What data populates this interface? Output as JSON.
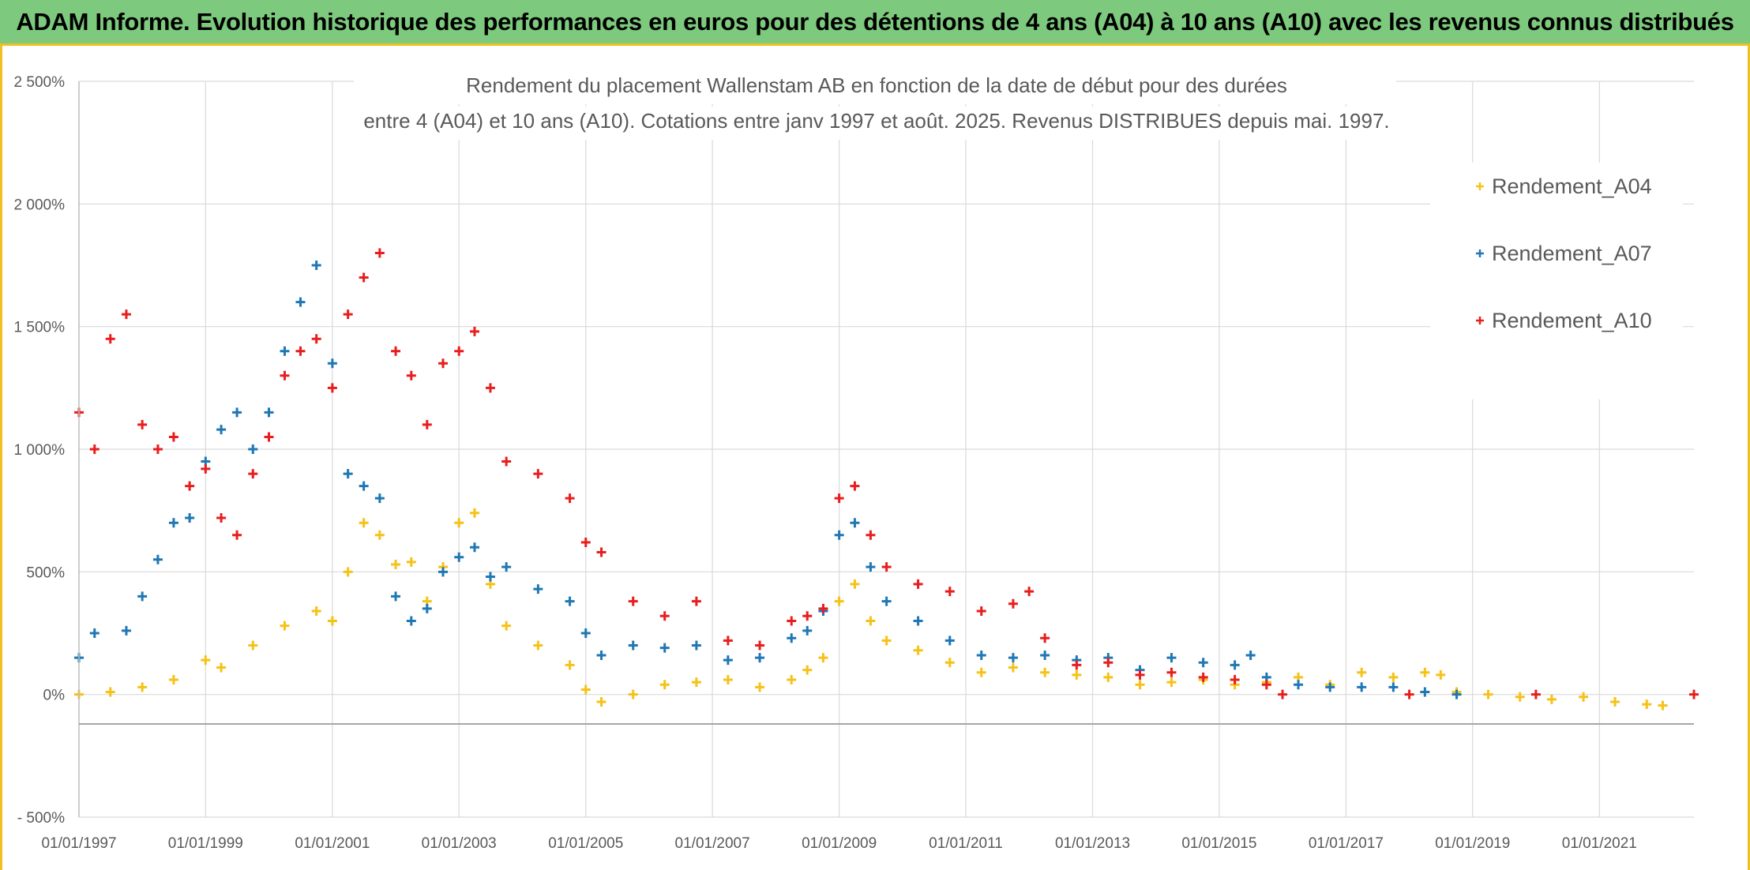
{
  "header": {
    "title": "ADAM Informe. Evolution historique des performances en euros pour des détentions de 4 ans (A04) à 10 ans (A10) avec les revenus connus distribués"
  },
  "chart_data": {
    "type": "scatter",
    "title_lines": [
      "Rendement du placement Wallenstam AB en fonction de la date de début pour des durées",
      "entre 4 (A04) et 10 ans (A10). Cotations entre janv 1997 et août. 2025. Revenus DISTRIBUES depuis mai. 1997."
    ],
    "xlabel": "",
    "ylabel": "",
    "x_ticks": [
      "01/01/1997",
      "01/01/1999",
      "01/01/2001",
      "01/01/2003",
      "01/01/2005",
      "01/01/2007",
      "01/01/2009",
      "01/01/2011",
      "01/01/2013",
      "01/01/2015",
      "01/01/2017",
      "01/01/2019",
      "01/01/2021"
    ],
    "y_ticks": [
      "- 500%",
      "0%",
      "500%",
      "1 000%",
      "1 500%",
      "2 000%",
      "2 500%"
    ],
    "xlim": [
      "1997-01-01",
      "2022-06-30"
    ],
    "ylim": [
      -500,
      2500
    ],
    "grid": true,
    "legend_position": "top-right",
    "series": [
      {
        "name": "Rendement_A04",
        "color": "#f5c218",
        "points": [
          [
            "1997-01-01",
            0
          ],
          [
            "1997-07-01",
            10
          ],
          [
            "1998-01-01",
            30
          ],
          [
            "1998-07-01",
            60
          ],
          [
            "1999-01-01",
            140
          ],
          [
            "1999-04-01",
            110
          ],
          [
            "1999-10-01",
            200
          ],
          [
            "2000-04-01",
            280
          ],
          [
            "2000-10-01",
            340
          ],
          [
            "2001-01-01",
            300
          ],
          [
            "2001-04-01",
            500
          ],
          [
            "2001-07-01",
            700
          ],
          [
            "2001-10-01",
            650
          ],
          [
            "2002-01-01",
            530
          ],
          [
            "2002-04-01",
            540
          ],
          [
            "2002-07-01",
            380
          ],
          [
            "2002-10-01",
            520
          ],
          [
            "2003-01-01",
            700
          ],
          [
            "2003-04-01",
            740
          ],
          [
            "2003-07-01",
            450
          ],
          [
            "2003-10-01",
            280
          ],
          [
            "2004-04-01",
            200
          ],
          [
            "2004-10-01",
            120
          ],
          [
            "2005-01-01",
            20
          ],
          [
            "2005-04-01",
            -30
          ],
          [
            "2005-10-01",
            0
          ],
          [
            "2006-04-01",
            40
          ],
          [
            "2006-10-01",
            50
          ],
          [
            "2007-04-01",
            60
          ],
          [
            "2007-10-01",
            30
          ],
          [
            "2008-04-01",
            60
          ],
          [
            "2008-07-01",
            100
          ],
          [
            "2008-10-01",
            150
          ],
          [
            "2009-01-01",
            380
          ],
          [
            "2009-04-01",
            450
          ],
          [
            "2009-07-01",
            300
          ],
          [
            "2009-10-01",
            220
          ],
          [
            "2010-04-01",
            180
          ],
          [
            "2010-10-01",
            130
          ],
          [
            "2011-04-01",
            90
          ],
          [
            "2011-10-01",
            110
          ],
          [
            "2012-04-01",
            90
          ],
          [
            "2012-10-01",
            80
          ],
          [
            "2013-04-01",
            70
          ],
          [
            "2013-10-01",
            40
          ],
          [
            "2014-04-01",
            50
          ],
          [
            "2014-10-01",
            60
          ],
          [
            "2015-04-01",
            40
          ],
          [
            "2015-10-01",
            50
          ],
          [
            "2016-04-01",
            70
          ],
          [
            "2016-10-01",
            40
          ],
          [
            "2017-04-01",
            90
          ],
          [
            "2017-10-01",
            70
          ],
          [
            "2018-04-01",
            90
          ],
          [
            "2018-07-01",
            80
          ],
          [
            "2018-10-01",
            10
          ],
          [
            "2019-04-01",
            0
          ],
          [
            "2019-10-01",
            -10
          ],
          [
            "2020-04-01",
            -20
          ],
          [
            "2020-10-01",
            -10
          ],
          [
            "2021-04-01",
            -30
          ],
          [
            "2021-10-01",
            -40
          ],
          [
            "2022-01-01",
            -45
          ]
        ]
      },
      {
        "name": "Rendement_A07",
        "color": "#1f77b4",
        "points": [
          [
            "1997-01-01",
            150
          ],
          [
            "1997-04-01",
            250
          ],
          [
            "1997-10-01",
            260
          ],
          [
            "1998-01-01",
            400
          ],
          [
            "1998-04-01",
            550
          ],
          [
            "1998-07-01",
            700
          ],
          [
            "1998-10-01",
            720
          ],
          [
            "1999-01-01",
            950
          ],
          [
            "1999-04-01",
            1080
          ],
          [
            "1999-07-01",
            1150
          ],
          [
            "1999-10-01",
            1000
          ],
          [
            "2000-01-01",
            1150
          ],
          [
            "2000-04-01",
            1400
          ],
          [
            "2000-07-01",
            1600
          ],
          [
            "2000-10-01",
            1750
          ],
          [
            "2001-01-01",
            1350
          ],
          [
            "2001-04-01",
            900
          ],
          [
            "2001-07-01",
            850
          ],
          [
            "2001-10-01",
            800
          ],
          [
            "2002-01-01",
            400
          ],
          [
            "2002-04-01",
            300
          ],
          [
            "2002-07-01",
            350
          ],
          [
            "2002-10-01",
            500
          ],
          [
            "2003-01-01",
            560
          ],
          [
            "2003-04-01",
            600
          ],
          [
            "2003-07-01",
            480
          ],
          [
            "2003-10-01",
            520
          ],
          [
            "2004-04-01",
            430
          ],
          [
            "2004-10-01",
            380
          ],
          [
            "2005-01-01",
            250
          ],
          [
            "2005-04-01",
            160
          ],
          [
            "2005-10-01",
            200
          ],
          [
            "2006-04-01",
            190
          ],
          [
            "2006-10-01",
            200
          ],
          [
            "2007-04-01",
            140
          ],
          [
            "2007-10-01",
            150
          ],
          [
            "2008-04-01",
            230
          ],
          [
            "2008-07-01",
            260
          ],
          [
            "2008-10-01",
            340
          ],
          [
            "2009-01-01",
            650
          ],
          [
            "2009-04-01",
            700
          ],
          [
            "2009-07-01",
            520
          ],
          [
            "2009-10-01",
            380
          ],
          [
            "2010-04-01",
            300
          ],
          [
            "2010-10-01",
            220
          ],
          [
            "2011-04-01",
            160
          ],
          [
            "2011-10-01",
            150
          ],
          [
            "2012-04-01",
            160
          ],
          [
            "2012-10-01",
            140
          ],
          [
            "2013-04-01",
            150
          ],
          [
            "2013-10-01",
            100
          ],
          [
            "2014-04-01",
            150
          ],
          [
            "2014-10-01",
            130
          ],
          [
            "2015-04-01",
            120
          ],
          [
            "2015-07-01",
            160
          ],
          [
            "2015-10-01",
            70
          ],
          [
            "2016-04-01",
            40
          ],
          [
            "2016-10-01",
            30
          ],
          [
            "2017-04-01",
            30
          ],
          [
            "2017-10-01",
            30
          ],
          [
            "2018-04-01",
            10
          ],
          [
            "2018-10-01",
            0
          ]
        ]
      },
      {
        "name": "Rendement_A10",
        "color": "#e81e1e",
        "points": [
          [
            "1997-01-01",
            1150
          ],
          [
            "1997-04-01",
            1000
          ],
          [
            "1997-07-01",
            1450
          ],
          [
            "1997-10-01",
            1550
          ],
          [
            "1998-01-01",
            1100
          ],
          [
            "1998-04-01",
            1000
          ],
          [
            "1998-07-01",
            1050
          ],
          [
            "1998-10-01",
            850
          ],
          [
            "1999-01-01",
            920
          ],
          [
            "1999-04-01",
            720
          ],
          [
            "1999-07-01",
            650
          ],
          [
            "1999-10-01",
            900
          ],
          [
            "2000-01-01",
            1050
          ],
          [
            "2000-04-01",
            1300
          ],
          [
            "2000-07-01",
            1400
          ],
          [
            "2000-10-01",
            1450
          ],
          [
            "2001-01-01",
            1250
          ],
          [
            "2001-04-01",
            1550
          ],
          [
            "2001-07-01",
            1700
          ],
          [
            "2001-10-01",
            1800
          ],
          [
            "2002-01-01",
            1400
          ],
          [
            "2002-04-01",
            1300
          ],
          [
            "2002-07-01",
            1100
          ],
          [
            "2002-10-01",
            1350
          ],
          [
            "2003-01-01",
            1400
          ],
          [
            "2003-04-01",
            1480
          ],
          [
            "2003-07-01",
            1250
          ],
          [
            "2003-10-01",
            950
          ],
          [
            "2004-04-01",
            900
          ],
          [
            "2004-10-01",
            800
          ],
          [
            "2005-01-01",
            620
          ],
          [
            "2005-04-01",
            580
          ],
          [
            "2005-10-01",
            380
          ],
          [
            "2006-04-01",
            320
          ],
          [
            "2006-10-01",
            380
          ],
          [
            "2007-04-01",
            220
          ],
          [
            "2007-10-01",
            200
          ],
          [
            "2008-04-01",
            300
          ],
          [
            "2008-07-01",
            320
          ],
          [
            "2008-10-01",
            350
          ],
          [
            "2009-01-01",
            800
          ],
          [
            "2009-04-01",
            850
          ],
          [
            "2009-07-01",
            650
          ],
          [
            "2009-10-01",
            520
          ],
          [
            "2010-04-01",
            450
          ],
          [
            "2010-10-01",
            420
          ],
          [
            "2011-04-01",
            340
          ],
          [
            "2011-10-01",
            370
          ],
          [
            "2012-01-01",
            420
          ],
          [
            "2012-04-01",
            230
          ],
          [
            "2012-10-01",
            120
          ],
          [
            "2013-04-01",
            130
          ],
          [
            "2013-10-01",
            80
          ],
          [
            "2014-04-01",
            90
          ],
          [
            "2014-10-01",
            70
          ],
          [
            "2015-04-01",
            60
          ],
          [
            "2015-10-01",
            40
          ],
          [
            "2016-01-01",
            0
          ],
          [
            "2018-01-01",
            0
          ],
          [
            "2020-01-01",
            0
          ],
          [
            "2022-06-30",
            0
          ]
        ]
      }
    ]
  }
}
